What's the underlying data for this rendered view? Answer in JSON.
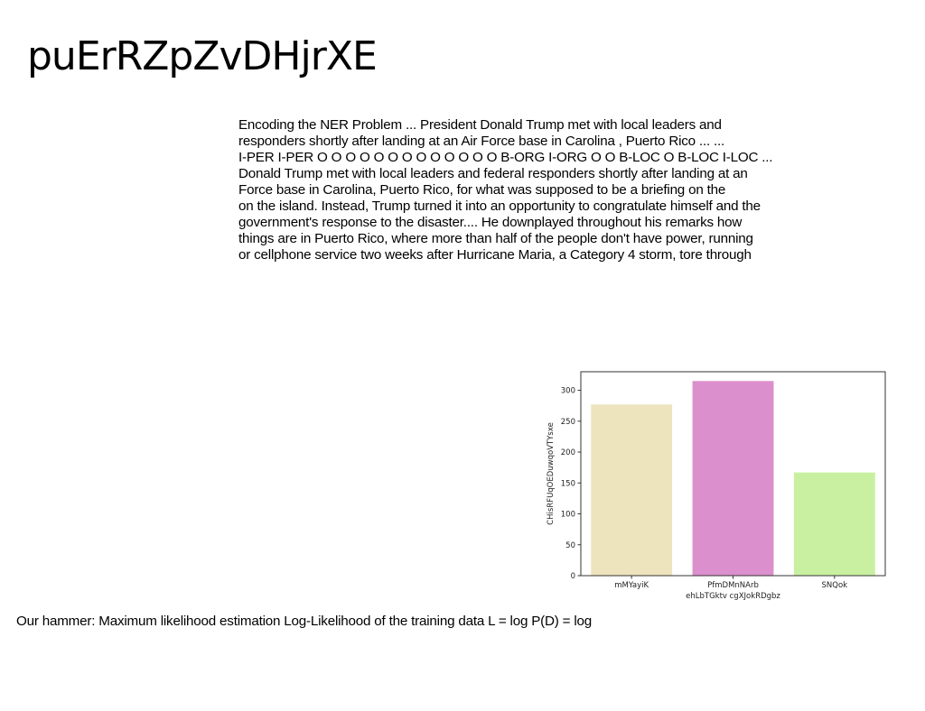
{
  "title": "puErRZpZvDHjrXE",
  "body_lines": [
    "Encoding the NER Problem ... President Donald Trump met with local leaders and",
    "responders shortly after landing at an Air Force base in Carolina , Puerto Rico ... ...",
    "I-PER I-PER O O O O O O O O O O O O O B-ORG I-ORG O O B-LOC O B-LOC I-LOC ...",
    "Donald Trump met with local leaders and federal responders shortly after landing at an",
    "Force base in Carolina, Puerto Rico, for what was supposed to be a briefing on the",
    "on the island. Instead, Trump turned it into an opportunity to congratulate himself and the",
    "government's response to the disaster.... He downplayed throughout his remarks how",
    "things are in Puerto Rico, where more than half of the people don't have power, running",
    "or cellphone service two weeks after Hurricane Maria, a Category 4 storm, tore through"
  ],
  "caption": "Our hammer: Maximum likelihood estimation Log-Likelihood of the training data L = log P(D) = log",
  "chart_data": {
    "type": "bar",
    "categories": [
      "mMYayiK",
      "PfmDMnNArb",
      "SNQok"
    ],
    "values": [
      277,
      315,
      167
    ],
    "colors": [
      "#ede3bd",
      "#dc8fcd",
      "#c8f0a0"
    ],
    "xlabel": "ehLbTGktv cgXJokRDgbz",
    "ylabel": "CHisRFUqOEDuwqoVTYsxe",
    "yticks": [
      0,
      50,
      100,
      150,
      200,
      250,
      300
    ],
    "ylim": [
      0,
      330
    ],
    "grid": false,
    "legend": "none"
  }
}
